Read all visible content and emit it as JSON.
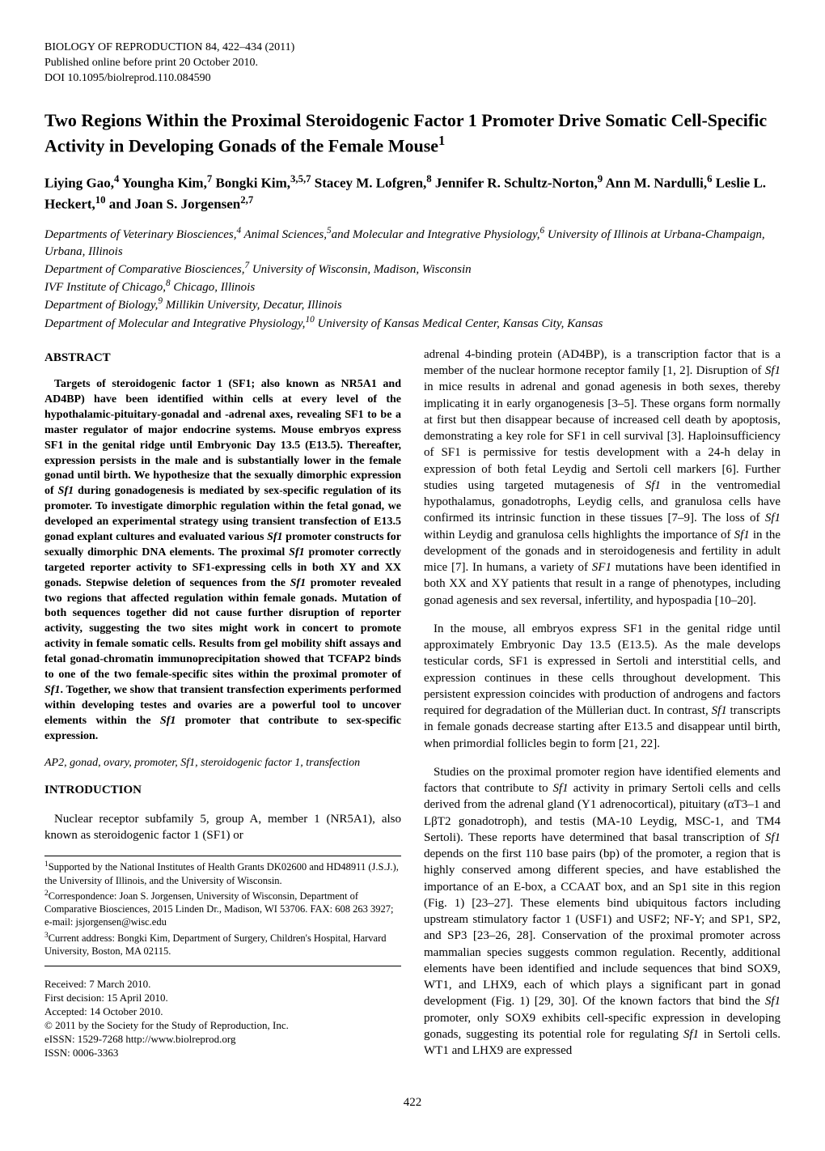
{
  "meta": {
    "journal_line": "BIOLOGY OF REPRODUCTION 84, 422–434 (2011)",
    "pub_online": "Published online before print 20 October 2010.",
    "doi": "DOI 10.1095/biolreprod.110.084590"
  },
  "title": "Two Regions Within the Proximal Steroidogenic Factor 1 Promoter Drive Somatic Cell-Specific Activity in Developing Gonads of the Female Mouse",
  "title_sup": "1",
  "authors_html": "Liying Gao,<sup>4</sup> Youngha Kim,<sup>7</sup> Bongki Kim,<sup>3,5,7</sup> Stacey M. Lofgren,<sup>8</sup> Jennifer R. Schultz-Norton,<sup>9</sup> Ann M. Nardulli,<sup>6</sup> Leslie L. Heckert,<sup>10</sup> and Joan S. Jorgensen<sup>2,7</sup>",
  "affiliations": [
    "Departments of Veterinary Biosciences,<sup>4</sup> Animal Sciences,<sup>5</sup>and Molecular and Integrative Physiology,<sup>6</sup> University of Illinois at Urbana-Champaign, Urbana, Illinois",
    "Department of Comparative Biosciences,<sup>7</sup> University of Wisconsin, Madison, Wisconsin",
    "IVF Institute of Chicago,<sup>8</sup> Chicago, Illinois",
    "Department of Biology,<sup>9</sup> Millikin University, Decatur, Illinois",
    "Department of Molecular and Integrative Physiology,<sup>10</sup> University of Kansas Medical Center, Kansas City, Kansas"
  ],
  "abstract_head": "ABSTRACT",
  "abstract_body": "Targets of steroidogenic factor 1 (SF1; also known as NR5A1 and AD4BP) have been identified within cells at every level of the hypothalamic-pituitary-gonadal and -adrenal axes, revealing SF1 to be a master regulator of major endocrine systems. Mouse embryos express SF1 in the genital ridge until Embryonic Day 13.5 (E13.5). Thereafter, expression persists in the male and is substantially lower in the female gonad until birth. We hypothesize that the sexually dimorphic expression of <i>Sf1</i> during gonadogenesis is mediated by sex-specific regulation of its promoter. To investigate dimorphic regulation within the fetal gonad, we developed an experimental strategy using transient transfection of E13.5 gonad explant cultures and evaluated various <i>Sf1</i> promoter constructs for sexually dimorphic DNA elements. The proximal <i>Sf1</i> promoter correctly targeted reporter activity to SF1-expressing cells in both XY and XX gonads. Stepwise deletion of sequences from the <i>Sf1</i> promoter revealed two regions that affected regulation within female gonads. Mutation of both sequences together did not cause further disruption of reporter activity, suggesting the two sites might work in concert to promote activity in female somatic cells. Results from gel mobility shift assays and fetal gonad-chromatin immunoprecipitation showed that TCFAP2 binds to one of the two female-specific sites within the proximal promoter of <i>Sf1</i>. Together, we show that transient transfection experiments performed within developing testes and ovaries are a powerful tool to uncover elements within the <i>Sf1</i> promoter that contribute to sex-specific expression.",
  "keywords": "AP2, gonad, ovary, promoter, Sf1, steroidogenic factor 1, transfection",
  "intro_head": "INTRODUCTION",
  "intro_p1": "Nuclear receptor subfamily 5, group A, member 1 (NR5A1), also known as steroidogenic factor 1 (SF1) or",
  "footnotes": {
    "f1": "<sup>1</sup>Supported by the National Institutes of Health Grants DK02600 and HD48911 (J.S.J.), the University of Illinois, and the University of Wisconsin.",
    "f2": "<sup>2</sup>Correspondence: Joan S. Jorgensen, University of Wisconsin, Department of Comparative Biosciences, 2015 Linden Dr., Madison, WI 53706. FAX: 608 263 3927; e-mail: jsjorgensen@wisc.edu",
    "f3": "<sup>3</sup>Current address: Bongki Kim, Department of Surgery, Children's Hospital, Harvard University, Boston, MA 02115."
  },
  "pubdates": {
    "received": "Received: 7 March 2010.",
    "first_decision": "First decision: 15 April 2010.",
    "accepted": "Accepted: 14 October 2010.",
    "copyright": "© 2011 by the Society for the Study of Reproduction, Inc.",
    "eissn": "eISSN: 1529-7268 http://www.biolreprod.org",
    "issn": "ISSN: 0006-3363"
  },
  "col2_p1": "adrenal 4-binding protein (AD4BP), is a transcription factor that is a member of the nuclear hormone receptor family [1, 2]. Disruption of <i>Sf1</i> in mice results in adrenal and gonad agenesis in both sexes, thereby implicating it in early organogenesis [3–5]. These organs form normally at first but then disappear because of increased cell death by apoptosis, demonstrating a key role for SF1 in cell survival [3]. Haploinsufficiency of SF1 is permissive for testis development with a 24-h delay in expression of both fetal Leydig and Sertoli cell markers [6]. Further studies using targeted mutagenesis of <i>Sf1</i> in the ventromedial hypothalamus, gonadotrophs, Leydig cells, and granulosa cells have confirmed its intrinsic function in these tissues [7–9]. The loss of <i>Sf1</i> within Leydig and granulosa cells highlights the importance of <i>Sf1</i> in the development of the gonads and in steroidogenesis and fertility in adult mice [7]. In humans, a variety of <i>SF1</i> mutations have been identified in both XX and XY patients that result in a range of phenotypes, including gonad agenesis and sex reversal, infertility, and hypospadia [10–20].",
  "col2_p2": "In the mouse, all embryos express SF1 in the genital ridge until approximately Embryonic Day 13.5 (E13.5). As the male develops testicular cords, SF1 is expressed in Sertoli and interstitial cells, and expression continues in these cells throughout development. This persistent expression coincides with production of androgens and factors required for degradation of the Müllerian duct. In contrast, <i>Sf1</i> transcripts in female gonads decrease starting after E13.5 and disappear until birth, when primordial follicles begin to form [21, 22].",
  "col2_p3": "Studies on the proximal promoter region have identified elements and factors that contribute to <i>Sf1</i> activity in primary Sertoli cells and cells derived from the adrenal gland (Y1 adrenocortical), pituitary (αT3–1 and LβT2 gonadotroph), and testis (MA-10 Leydig, MSC-1, and TM4 Sertoli). These reports have determined that basal transcription of <i>Sf1</i> depends on the first 110 base pairs (bp) of the promoter, a region that is highly conserved among different species, and have established the importance of an E-box, a CCAAT box, and an Sp1 site in this region (Fig. 1) [23–27]. These elements bind ubiquitous factors including upstream stimulatory factor 1 (USF1) and USF2; NF-Y; and SP1, SP2, and SP3 [23–26, 28]. Conservation of the proximal promoter across mammalian species suggests common regulation. Recently, additional elements have been identified and include sequences that bind SOX9, WT1, and LHX9, each of which plays a significant part in gonad development (Fig. 1) [29, 30]. Of the known factors that bind the <i>Sf1</i> promoter, only SOX9 exhibits cell-specific expression in developing gonads, suggesting its potential role for regulating <i>Sf1</i> in Sertoli cells. WT1 and LHX9 are expressed",
  "page_number": "422"
}
